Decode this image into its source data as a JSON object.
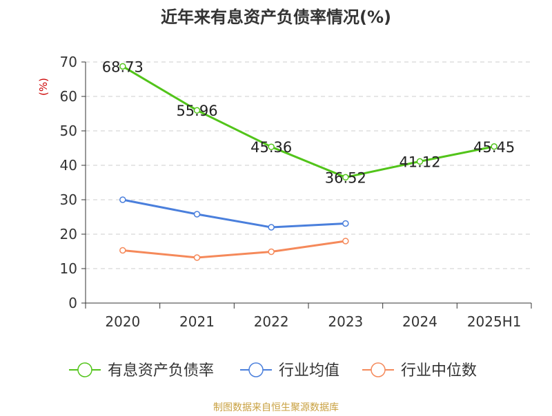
{
  "chart_data": {
    "type": "line",
    "title": "近年来有息资产负债率情况(%)",
    "ylabel": "(%)",
    "xlabel": "",
    "categories": [
      "2020",
      "2021",
      "2022",
      "2023",
      "2024",
      "2025H1"
    ],
    "ylim": [
      0,
      70
    ],
    "yticks": [
      0,
      10,
      20,
      30,
      40,
      50,
      60,
      70
    ],
    "grid": true,
    "legend_position": "bottom",
    "series": [
      {
        "name": "有息资产负债率",
        "color": "#52c41a",
        "values": [
          68.73,
          55.96,
          45.36,
          36.52,
          41.12,
          45.45
        ],
        "labels": [
          "68.73",
          "55.96",
          "45.36",
          "36.52",
          "41.12",
          "45.45"
        ]
      },
      {
        "name": "行业均值",
        "color": "#4a7fdc",
        "values": [
          30.0,
          25.8,
          22.0,
          23.1,
          null,
          null
        ]
      },
      {
        "name": "行业中位数",
        "color": "#f5895a",
        "values": [
          15.3,
          13.2,
          14.9,
          18.0,
          null,
          null
        ]
      }
    ]
  },
  "footer": {
    "source": "制图数据来自恒生聚源数据库"
  }
}
